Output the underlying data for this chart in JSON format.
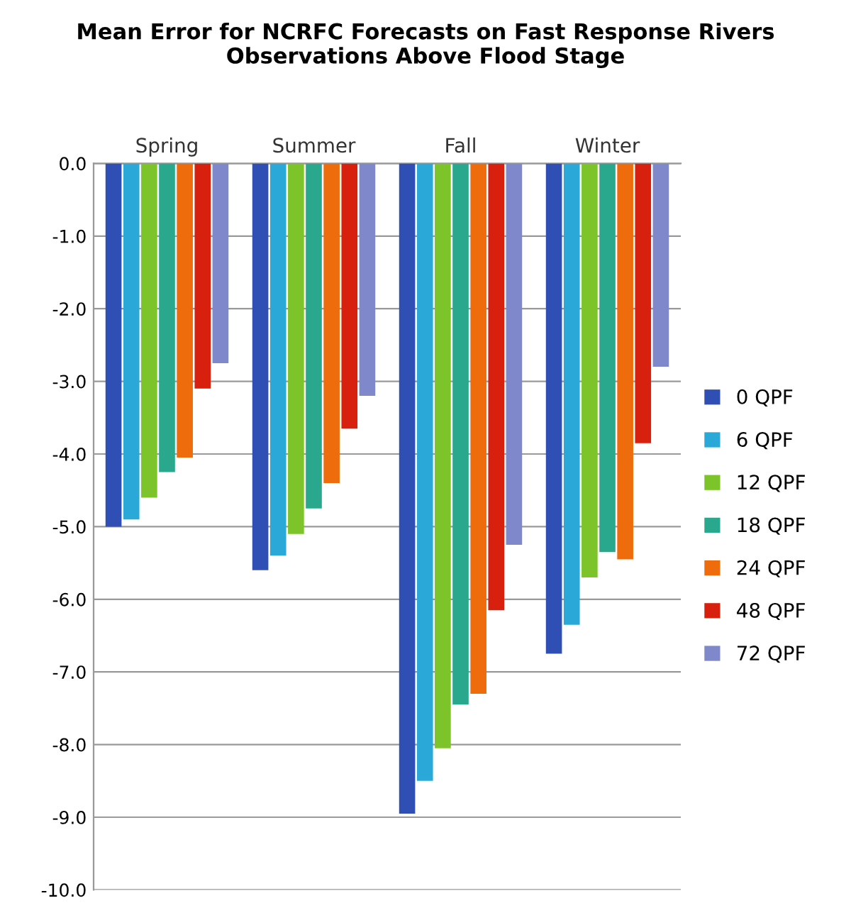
{
  "chart_data": {
    "type": "bar",
    "title": "Mean Error for NCRFC Forecasts on Fast Response Rivers\nObservations Above Flood Stage",
    "categories": [
      "Spring",
      "Summer",
      "Fall",
      "Winter"
    ],
    "series": [
      {
        "name": "0 QPF",
        "color": "#2f4fb5",
        "values": [
          -5.0,
          -5.6,
          -8.95,
          -6.75
        ]
      },
      {
        "name": "6 QPF",
        "color": "#2aa9d8",
        "values": [
          -4.9,
          -5.4,
          -8.5,
          -6.35
        ]
      },
      {
        "name": "12 QPF",
        "color": "#7cc42a",
        "values": [
          -4.6,
          -5.1,
          -8.05,
          -5.7
        ]
      },
      {
        "name": "18 QPF",
        "color": "#2aa88e",
        "values": [
          -4.25,
          -4.75,
          -7.45,
          -5.35
        ]
      },
      {
        "name": "24 QPF",
        "color": "#ee6c0c",
        "values": [
          -4.05,
          -4.4,
          -7.3,
          -5.45
        ]
      },
      {
        "name": "48 QPF",
        "color": "#d8200e",
        "values": [
          -3.1,
          -3.65,
          -6.15,
          -3.85
        ]
      },
      {
        "name": "72 QPF",
        "color": "#8088cc",
        "values": [
          -2.75,
          -3.2,
          -5.25,
          -2.8
        ]
      }
    ],
    "ylim": [
      -10,
      0
    ],
    "yticks": [
      {
        "value": 0,
        "label": "0.0"
      },
      {
        "value": -1,
        "label": "-1.0"
      },
      {
        "value": -2,
        "label": "-2.0"
      },
      {
        "value": -3,
        "label": "-3.0"
      },
      {
        "value": -4,
        "label": "-4.0"
      },
      {
        "value": -5,
        "label": "-5.0"
      },
      {
        "value": -6,
        "label": "-6.0"
      },
      {
        "value": -7,
        "label": "-7.0"
      },
      {
        "value": -8,
        "label": "-8.0"
      },
      {
        "value": -9,
        "label": "-9.0"
      },
      {
        "value": -10,
        "label": "-10.0"
      }
    ],
    "grid": "y",
    "legend": "right"
  }
}
